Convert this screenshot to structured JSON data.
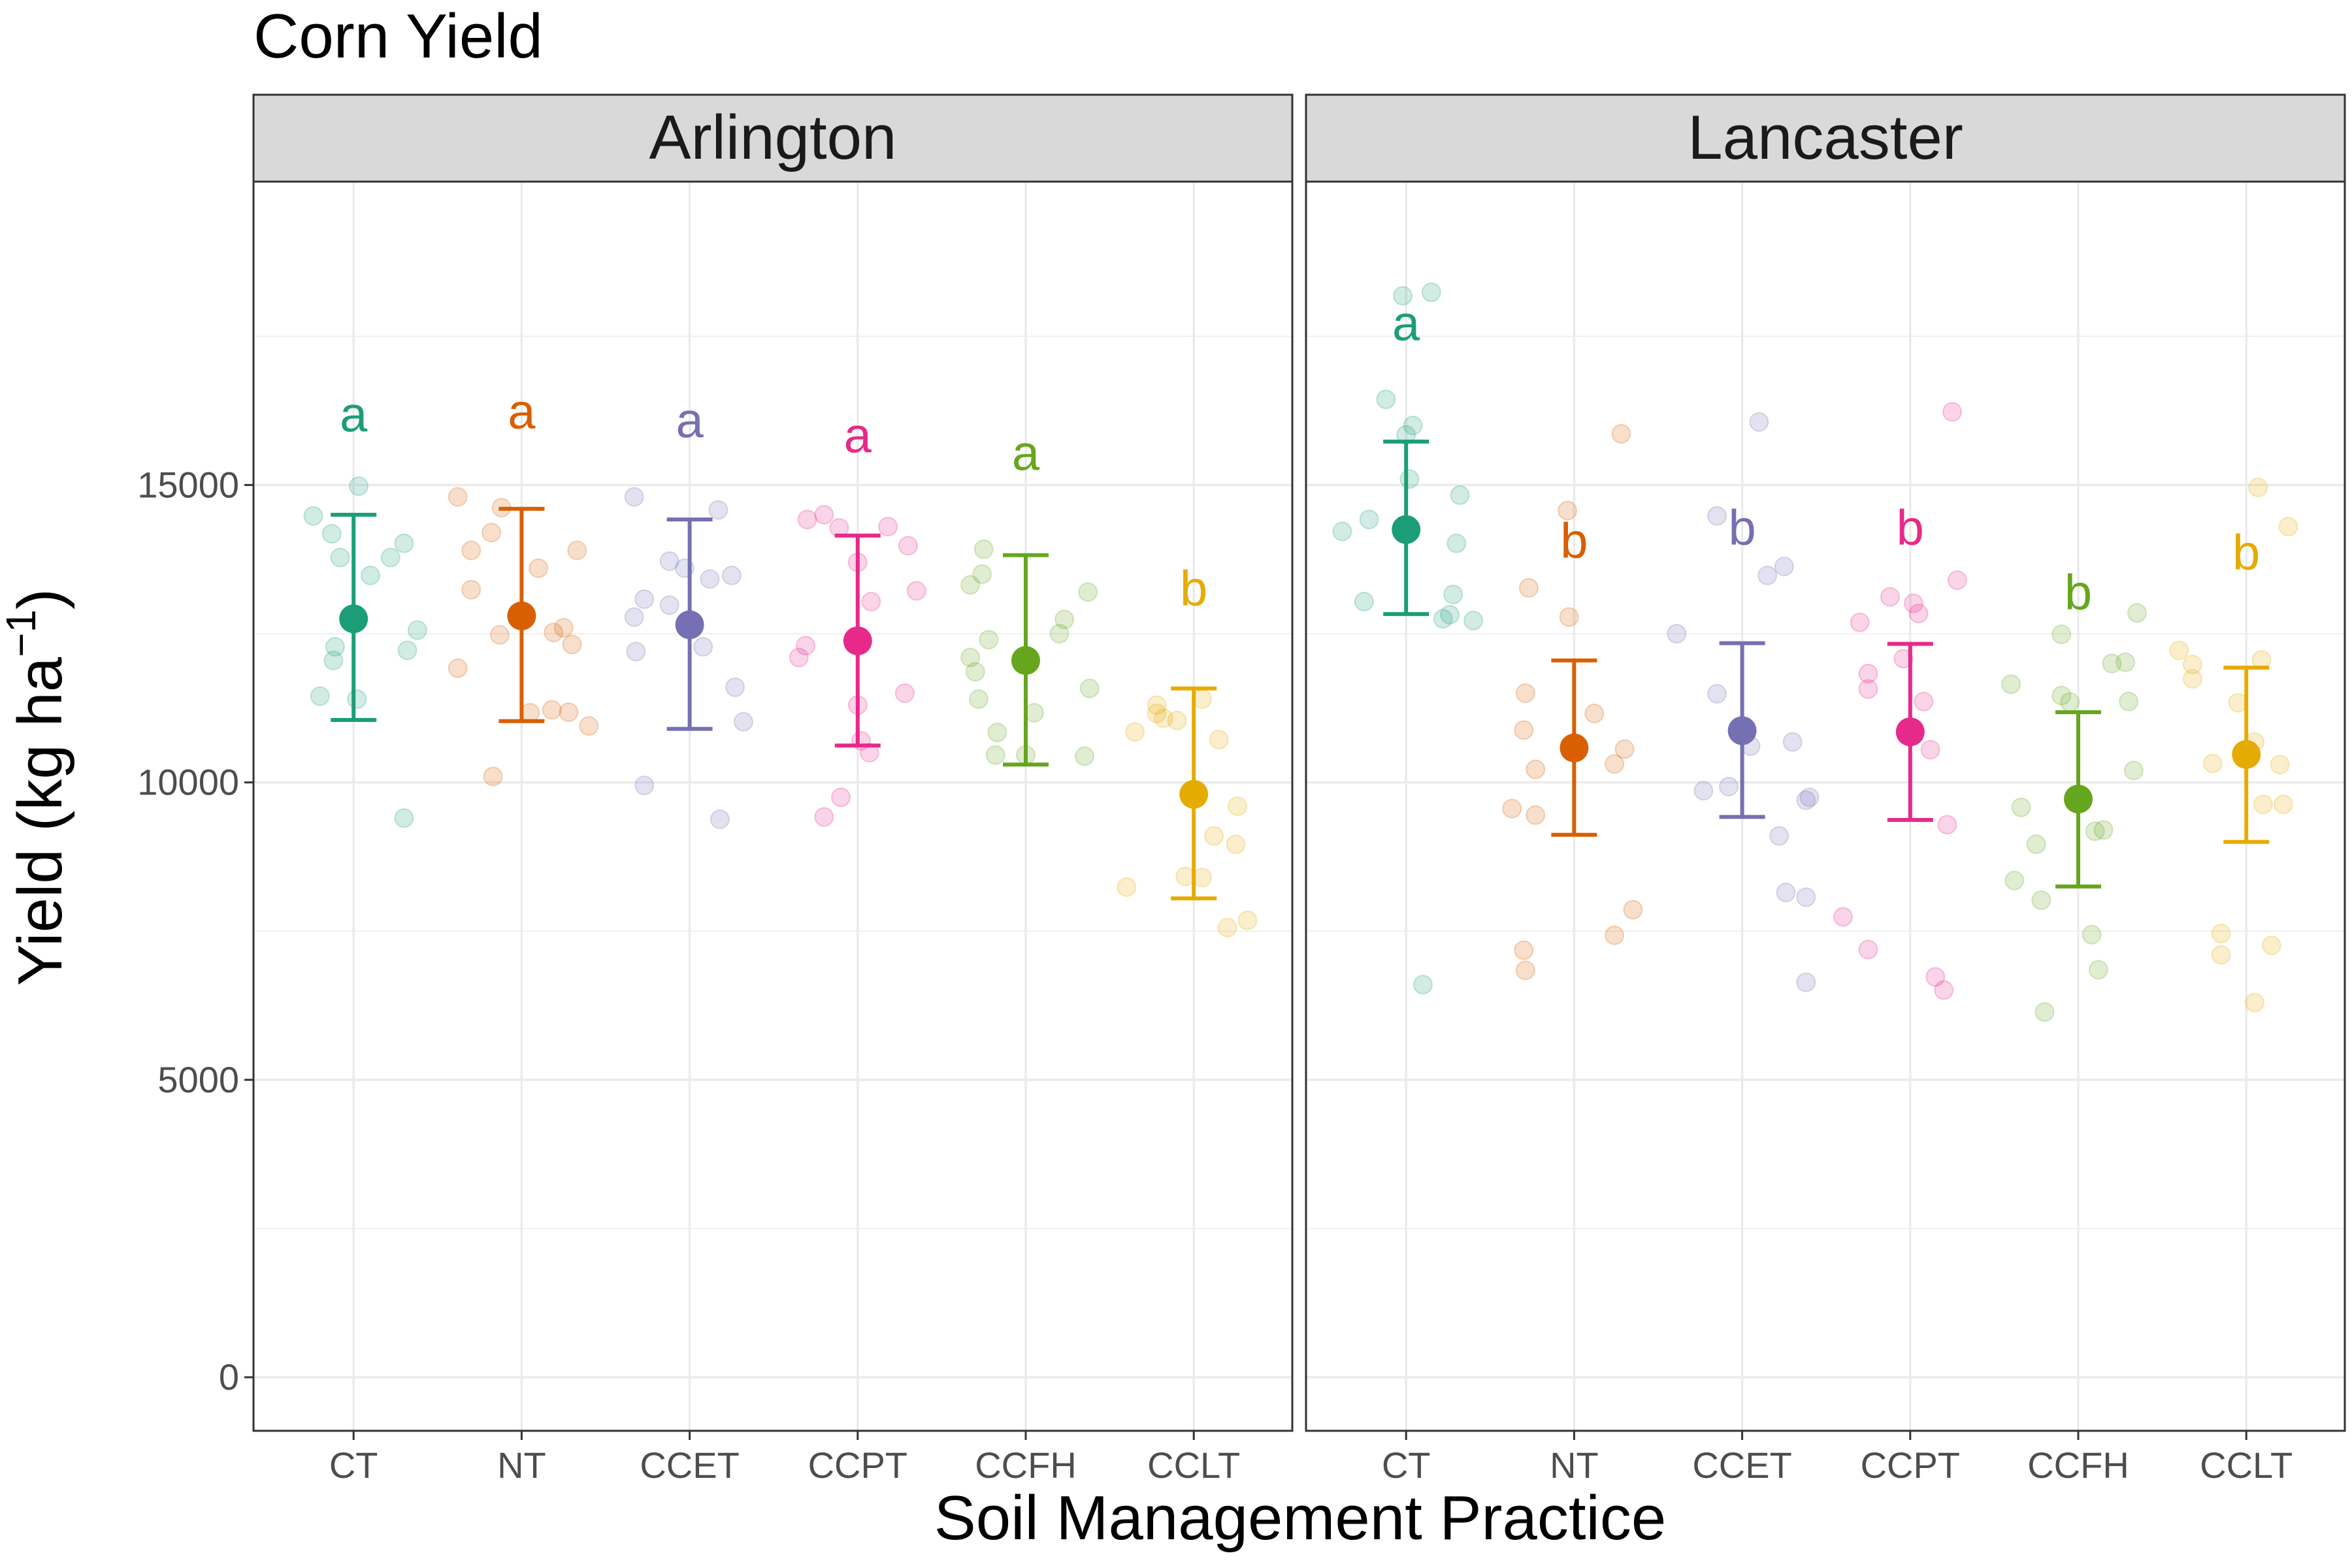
{
  "chart_data": {
    "type": "scatter",
    "title": "Corn Yield",
    "xlabel": "Soil Management Practice",
    "ylabel": {
      "main": "Yield (kg ha",
      "exponent": "−1",
      "close": ")"
    },
    "ylim": [
      -900,
      20100
    ],
    "yticks": [
      0,
      5000,
      10000,
      15000
    ],
    "categories": [
      "CT",
      "NT",
      "CCET",
      "CCPT",
      "CCFH",
      "CCLT"
    ],
    "colors": {
      "CT": "#1b9e77",
      "NT": "#d95f02",
      "CCET": "#7570b3",
      "CCPT": "#e7298a",
      "CCFH": "#66a61e",
      "CCLT": "#e6ab02"
    },
    "grid": true,
    "panels": [
      {
        "name": "Arlington",
        "summary": [
          {
            "category": "CT",
            "mean": 12750,
            "lower": 11050,
            "upper": 14500,
            "letter": "a"
          },
          {
            "category": "NT",
            "mean": 12800,
            "lower": 11030,
            "upper": 14600,
            "letter": "a"
          },
          {
            "category": "CCET",
            "mean": 12650,
            "lower": 10900,
            "upper": 14420,
            "letter": "a"
          },
          {
            "category": "CCPT",
            "mean": 12380,
            "lower": 10620,
            "upper": 14150,
            "letter": "a"
          },
          {
            "category": "CCFH",
            "mean": 12050,
            "lower": 10300,
            "upper": 13820,
            "letter": "a"
          },
          {
            "category": "CCLT",
            "mean": 9800,
            "lower": 8050,
            "upper": 11580,
            "letter": "b"
          }
        ],
        "letter_y": [
          15900,
          15950,
          15800,
          15550,
          15250,
          12980
        ],
        "observations": [
          {
            "category": "CT",
            "points": [
              [
                -0.24,
                14480
              ],
              [
                -0.13,
                14180
              ],
              [
                -0.12,
                12050
              ],
              [
                -0.11,
                12280
              ],
              [
                -0.08,
                13780
              ],
              [
                0.02,
                11400
              ],
              [
                0.03,
                14980
              ],
              [
                0.1,
                13480
              ],
              [
                0.22,
                13780
              ],
              [
                0.3,
                14020
              ],
              [
                0.32,
                12220
              ],
              [
                0.3,
                9400
              ],
              [
                0.38,
                12560
              ],
              [
                -0.2,
                11450
              ]
            ]
          },
          {
            "category": "NT",
            "points": [
              [
                -0.38,
                14800
              ],
              [
                -0.38,
                11920
              ],
              [
                -0.3,
                13240
              ],
              [
                -0.3,
                13900
              ],
              [
                -0.18,
                14200
              ],
              [
                -0.13,
                12480
              ],
              [
                -0.12,
                14620
              ],
              [
                -0.17,
                10100
              ],
              [
                0.05,
                11170
              ],
              [
                0.1,
                13600
              ],
              [
                0.18,
                11220
              ],
              [
                0.19,
                12520
              ],
              [
                0.25,
                12600
              ],
              [
                0.28,
                11180
              ],
              [
                0.3,
                12320
              ],
              [
                0.33,
                13900
              ],
              [
                0.4,
                10950
              ]
            ]
          },
          {
            "category": "CCET",
            "points": [
              [
                -0.33,
                14800
              ],
              [
                -0.33,
                12780
              ],
              [
                -0.32,
                12200
              ],
              [
                -0.27,
                13080
              ],
              [
                -0.27,
                9950
              ],
              [
                -0.12,
                13720
              ],
              [
                -0.12,
                12980
              ],
              [
                -0.03,
                13600
              ],
              [
                0.08,
                12280
              ],
              [
                0.12,
                13420
              ],
              [
                0.17,
                14580
              ],
              [
                0.18,
                9380
              ],
              [
                0.25,
                13480
              ],
              [
                0.27,
                11600
              ],
              [
                0.32,
                11020
              ]
            ]
          },
          {
            "category": "CCPT",
            "points": [
              [
                -0.35,
                12100
              ],
              [
                -0.31,
                12300
              ],
              [
                -0.3,
                14420
              ],
              [
                -0.2,
                14500
              ],
              [
                -0.2,
                9420
              ],
              [
                -0.11,
                14280
              ],
              [
                -0.1,
                9750
              ],
              [
                0.0,
                13700
              ],
              [
                0.02,
                10700
              ],
              [
                0.07,
                10500
              ],
              [
                0.08,
                13040
              ],
              [
                0.18,
                14300
              ],
              [
                0.28,
                11500
              ],
              [
                0.3,
                13980
              ],
              [
                0.35,
                13220
              ],
              [
                0.0,
                11300
              ]
            ]
          },
          {
            "category": "CCFH",
            "points": [
              [
                -0.33,
                12100
              ],
              [
                -0.33,
                13320
              ],
              [
                -0.3,
                11860
              ],
              [
                -0.28,
                11400
              ],
              [
                -0.26,
                13500
              ],
              [
                -0.25,
                13920
              ],
              [
                -0.22,
                12400
              ],
              [
                -0.17,
                10840
              ],
              [
                -0.18,
                10460
              ],
              [
                0.0,
                10460
              ],
              [
                0.05,
                11170
              ],
              [
                0.2,
                12500
              ],
              [
                0.23,
                12740
              ],
              [
                0.38,
                11580
              ],
              [
                0.37,
                13200
              ],
              [
                0.35,
                10440
              ]
            ]
          },
          {
            "category": "CCLT",
            "points": [
              [
                -0.4,
                8240
              ],
              [
                -0.35,
                10850
              ],
              [
                -0.22,
                11160
              ],
              [
                -0.22,
                11300
              ],
              [
                -0.18,
                11080
              ],
              [
                -0.1,
                11040
              ],
              [
                -0.05,
                8420
              ],
              [
                0.05,
                8400
              ],
              [
                0.05,
                11400
              ],
              [
                0.12,
                9100
              ],
              [
                0.15,
                10720
              ],
              [
                0.2,
                7560
              ],
              [
                0.25,
                8960
              ],
              [
                0.26,
                9600
              ],
              [
                0.32,
                7680
              ]
            ]
          }
        ]
      },
      {
        "name": "Lancaster",
        "summary": [
          {
            "category": "CT",
            "mean": 14250,
            "lower": 12830,
            "upper": 15730,
            "letter": "a"
          },
          {
            "category": "NT",
            "mean": 10580,
            "lower": 9120,
            "upper": 12050,
            "letter": "b"
          },
          {
            "category": "CCET",
            "mean": 10870,
            "lower": 9420,
            "upper": 12340,
            "letter": "b"
          },
          {
            "category": "CCPT",
            "mean": 10850,
            "lower": 9370,
            "upper": 12330,
            "letter": "b"
          },
          {
            "category": "CCFH",
            "mean": 9720,
            "lower": 8250,
            "upper": 11180,
            "letter": "b"
          },
          {
            "category": "CCLT",
            "mean": 10470,
            "lower": 9000,
            "upper": 11930,
            "letter": "b"
          }
        ],
        "letter_y": [
          17430,
          13780,
          14000,
          14000,
          12910,
          13580
        ],
        "observations": [
          {
            "category": "CT",
            "points": [
              [
                -0.38,
                14220
              ],
              [
                -0.22,
                14420
              ],
              [
                -0.25,
                13040
              ],
              [
                -0.12,
                16440
              ],
              [
                -0.02,
                18180
              ],
              [
                0.0,
                15840
              ],
              [
                0.02,
                15100
              ],
              [
                0.04,
                16000
              ],
              [
                0.1,
                6600
              ],
              [
                0.15,
                18240
              ],
              [
                0.22,
                12750
              ],
              [
                0.26,
                12820
              ],
              [
                0.28,
                13160
              ],
              [
                0.3,
                14020
              ],
              [
                0.32,
                14830
              ],
              [
                0.4,
                12720
              ]
            ]
          },
          {
            "category": "NT",
            "points": [
              [
                -0.37,
                9560
              ],
              [
                -0.3,
                7180
              ],
              [
                -0.3,
                10880
              ],
              [
                -0.29,
                11500
              ],
              [
                -0.29,
                6840
              ],
              [
                -0.27,
                13270
              ],
              [
                -0.23,
                10220
              ],
              [
                -0.23,
                9450
              ],
              [
                -0.04,
                14570
              ],
              [
                -0.03,
                12780
              ],
              [
                0.12,
                11160
              ],
              [
                0.24,
                7430
              ],
              [
                0.24,
                10310
              ],
              [
                0.28,
                15860
              ],
              [
                0.3,
                10560
              ],
              [
                0.35,
                7860
              ]
            ]
          },
          {
            "category": "CCET",
            "points": [
              [
                -0.39,
                12500
              ],
              [
                -0.23,
                9860
              ],
              [
                -0.15,
                11490
              ],
              [
                -0.15,
                14480
              ],
              [
                -0.08,
                9930
              ],
              [
                0.05,
                10610
              ],
              [
                0.1,
                16060
              ],
              [
                0.15,
                13480
              ],
              [
                0.25,
                13630
              ],
              [
                0.22,
                9100
              ],
              [
                0.26,
                8150
              ],
              [
                0.3,
                10680
              ],
              [
                0.38,
                9700
              ],
              [
                0.38,
                8070
              ],
              [
                0.38,
                6640
              ],
              [
                0.4,
                9750
              ]
            ]
          },
          {
            "category": "CCPT",
            "points": [
              [
                -0.4,
                7740
              ],
              [
                -0.3,
                12690
              ],
              [
                -0.25,
                11570
              ],
              [
                -0.25,
                11830
              ],
              [
                -0.25,
                7190
              ],
              [
                -0.12,
                13120
              ],
              [
                -0.04,
                12080
              ],
              [
                0.02,
                13010
              ],
              [
                0.05,
                12840
              ],
              [
                0.08,
                11360
              ],
              [
                0.12,
                10550
              ],
              [
                0.15,
                6730
              ],
              [
                0.2,
                6510
              ],
              [
                0.22,
                9290
              ],
              [
                0.28,
                13400
              ],
              [
                0.25,
                16230
              ]
            ]
          },
          {
            "category": "CCFH",
            "points": [
              [
                -0.4,
                11650
              ],
              [
                -0.38,
                8350
              ],
              [
                -0.34,
                9580
              ],
              [
                -0.25,
                8960
              ],
              [
                -0.22,
                8020
              ],
              [
                -0.1,
                12490
              ],
              [
                -0.1,
                11460
              ],
              [
                -0.05,
                11350
              ],
              [
                0.08,
                7440
              ],
              [
                0.12,
                6850
              ],
              [
                -0.2,
                6140
              ],
              [
                0.1,
                9180
              ],
              [
                0.15,
                9200
              ],
              [
                0.2,
                12000
              ],
              [
                0.28,
                12020
              ],
              [
                0.3,
                11360
              ],
              [
                0.33,
                10200
              ],
              [
                0.35,
                12850
              ]
            ]
          },
          {
            "category": "CCLT",
            "points": [
              [
                -0.4,
                12220
              ],
              [
                -0.32,
                11980
              ],
              [
                -0.32,
                11740
              ],
              [
                -0.15,
                7460
              ],
              [
                -0.15,
                7100
              ],
              [
                -0.2,
                10320
              ],
              [
                -0.05,
                11340
              ],
              [
                0.05,
                10680
              ],
              [
                0.05,
                6300
              ],
              [
                0.07,
                14960
              ],
              [
                0.09,
                12060
              ],
              [
                0.1,
                9630
              ],
              [
                0.15,
                7260
              ],
              [
                0.2,
                10300
              ],
              [
                0.22,
                9630
              ],
              [
                0.25,
                14300
              ]
            ]
          }
        ]
      }
    ]
  }
}
